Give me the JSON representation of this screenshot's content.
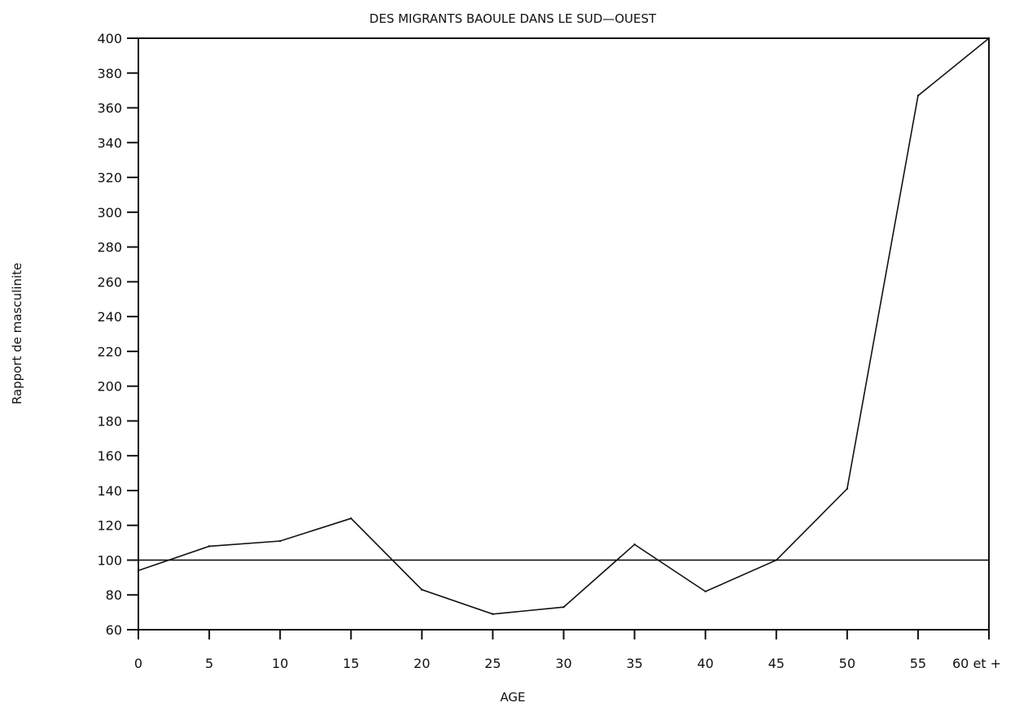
{
  "chart_data": {
    "type": "line",
    "title": "DES MIGRANTS BAOULE DANS LE SUD—OUEST",
    "xlabel": "AGE",
    "ylabel": "Rapport de masculinite",
    "x_tick_labels": [
      "0",
      "5",
      "10",
      "15",
      "20",
      "25",
      "30",
      "35",
      "40",
      "45",
      "50",
      "55",
      "60 et +"
    ],
    "x": [
      0,
      5,
      10,
      15,
      20,
      25,
      30,
      35,
      40,
      45,
      50,
      55,
      60
    ],
    "series": [
      {
        "values": [
          94,
          108,
          111,
          124,
          83,
          69,
          73,
          109,
          82,
          100,
          141,
          367,
          400
        ]
      }
    ],
    "reference_line": 100,
    "xlim": [
      0,
      60
    ],
    "ylim": [
      60,
      400
    ],
    "y_ticks": [
      60,
      80,
      100,
      120,
      140,
      160,
      180,
      200,
      220,
      240,
      260,
      280,
      300,
      320,
      340,
      360,
      380,
      400
    ],
    "grid": false,
    "colors": {
      "line": "#111111",
      "axis": "#111111",
      "background": "#ffffff"
    }
  }
}
